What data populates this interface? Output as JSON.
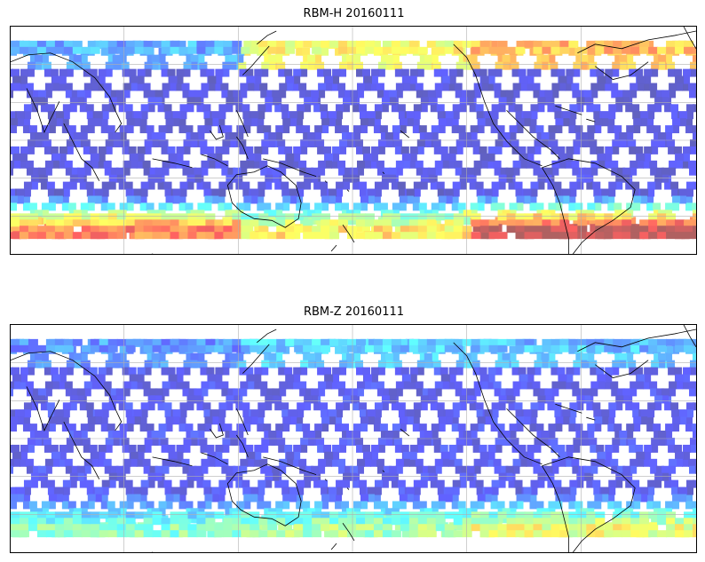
{
  "figure": {
    "panels": [
      {
        "id": "top",
        "title": "RBM-H 20160111",
        "colormap": "jet",
        "regional_levels": {
          "northern_band_west": 0.25,
          "northern_band_central": 0.62,
          "northern_band_east": 0.72,
          "tropics": 0.08,
          "southern_band_west": 0.82,
          "southern_band_central": 0.65,
          "southern_band_east": 0.97
        }
      },
      {
        "id": "bottom",
        "title": "RBM-Z 20160111",
        "colormap": "jet",
        "regional_levels": {
          "northern_band_west": 0.22,
          "northern_band_central": 0.3,
          "northern_band_east": 0.28,
          "tropics": 0.1,
          "southern_band_west": 0.45,
          "southern_band_central": 0.5,
          "southern_band_east": 0.6
        }
      }
    ],
    "gridlines": true,
    "coastlines": true
  }
}
